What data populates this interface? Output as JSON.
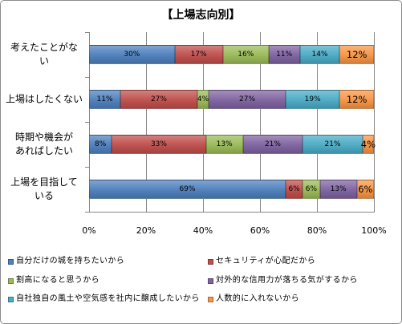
{
  "chart_data": {
    "type": "bar",
    "orientation": "horizontal",
    "stacked": true,
    "title": "【上場志向別】",
    "categories": [
      "考えたことがない",
      "上場はしたくない",
      "時期や機会があればしたい",
      "上場を目指している"
    ],
    "series": [
      {
        "name": "自分だけの城を持ちたいから",
        "color": "#4F81BD",
        "values": [
          30,
          11,
          8,
          69
        ]
      },
      {
        "name": "セキュリティが心配だから",
        "color": "#C0504D",
        "values": [
          17,
          27,
          33,
          6
        ]
      },
      {
        "name": "割高になると思うから",
        "color": "#9BBB59",
        "values": [
          16,
          4,
          13,
          6
        ]
      },
      {
        "name": "対外的な信用力が落ちる気がするから",
        "color": "#8064A2",
        "values": [
          11,
          27,
          21,
          13
        ]
      },
      {
        "name": "自社独自の風土や空気感を社内に醸成したいから",
        "color": "#4BACC6",
        "values": [
          14,
          19,
          21,
          0
        ]
      },
      {
        "name": "人数的に入れないから",
        "color": "#F79646",
        "values": [
          12,
          12,
          4,
          6
        ]
      }
    ],
    "unit": "%",
    "xlim": [
      0,
      100
    ],
    "x_ticks": [
      0,
      20,
      40,
      60,
      80,
      100
    ],
    "grid": true,
    "data_labels": true,
    "legend": "bottom"
  }
}
